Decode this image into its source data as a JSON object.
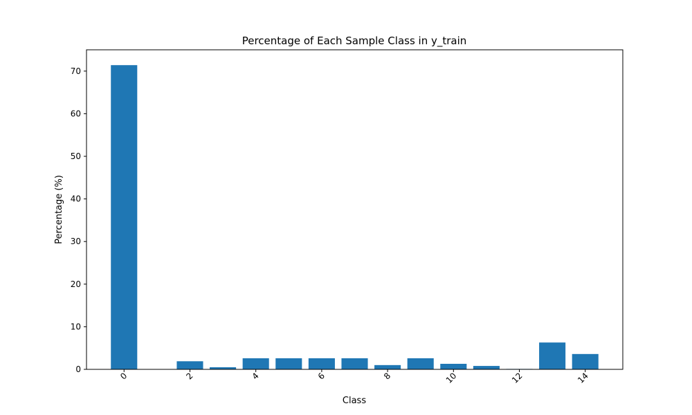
{
  "chart_data": {
    "type": "bar",
    "title": "Percentage of Each Sample Class in y_train",
    "xlabel": "Class",
    "ylabel": "Percentage (%)",
    "categories": [
      0,
      1,
      2,
      3,
      4,
      5,
      6,
      7,
      8,
      9,
      10,
      11,
      12,
      13,
      14
    ],
    "values": [
      71.4,
      0.0,
      1.9,
      0.5,
      2.6,
      2.6,
      2.6,
      2.6,
      1.0,
      2.6,
      1.3,
      0.8,
      0.1,
      6.3,
      3.6
    ],
    "x_ticks": [
      "0",
      "2",
      "4",
      "6",
      "8",
      "10",
      "12",
      "14"
    ],
    "x_tick_values": [
      0,
      2,
      4,
      6,
      8,
      10,
      12,
      14
    ],
    "x_tick_rotation": 45,
    "y_ticks": [
      "0",
      "10",
      "20",
      "30",
      "40",
      "50",
      "60",
      "70"
    ],
    "y_tick_values": [
      0,
      10,
      20,
      30,
      40,
      50,
      60,
      70
    ],
    "ylim": [
      0,
      75
    ],
    "xlim": [
      -1.14,
      15.14
    ],
    "bar_color": "#1f77b4",
    "grid": false,
    "legend": "none"
  }
}
